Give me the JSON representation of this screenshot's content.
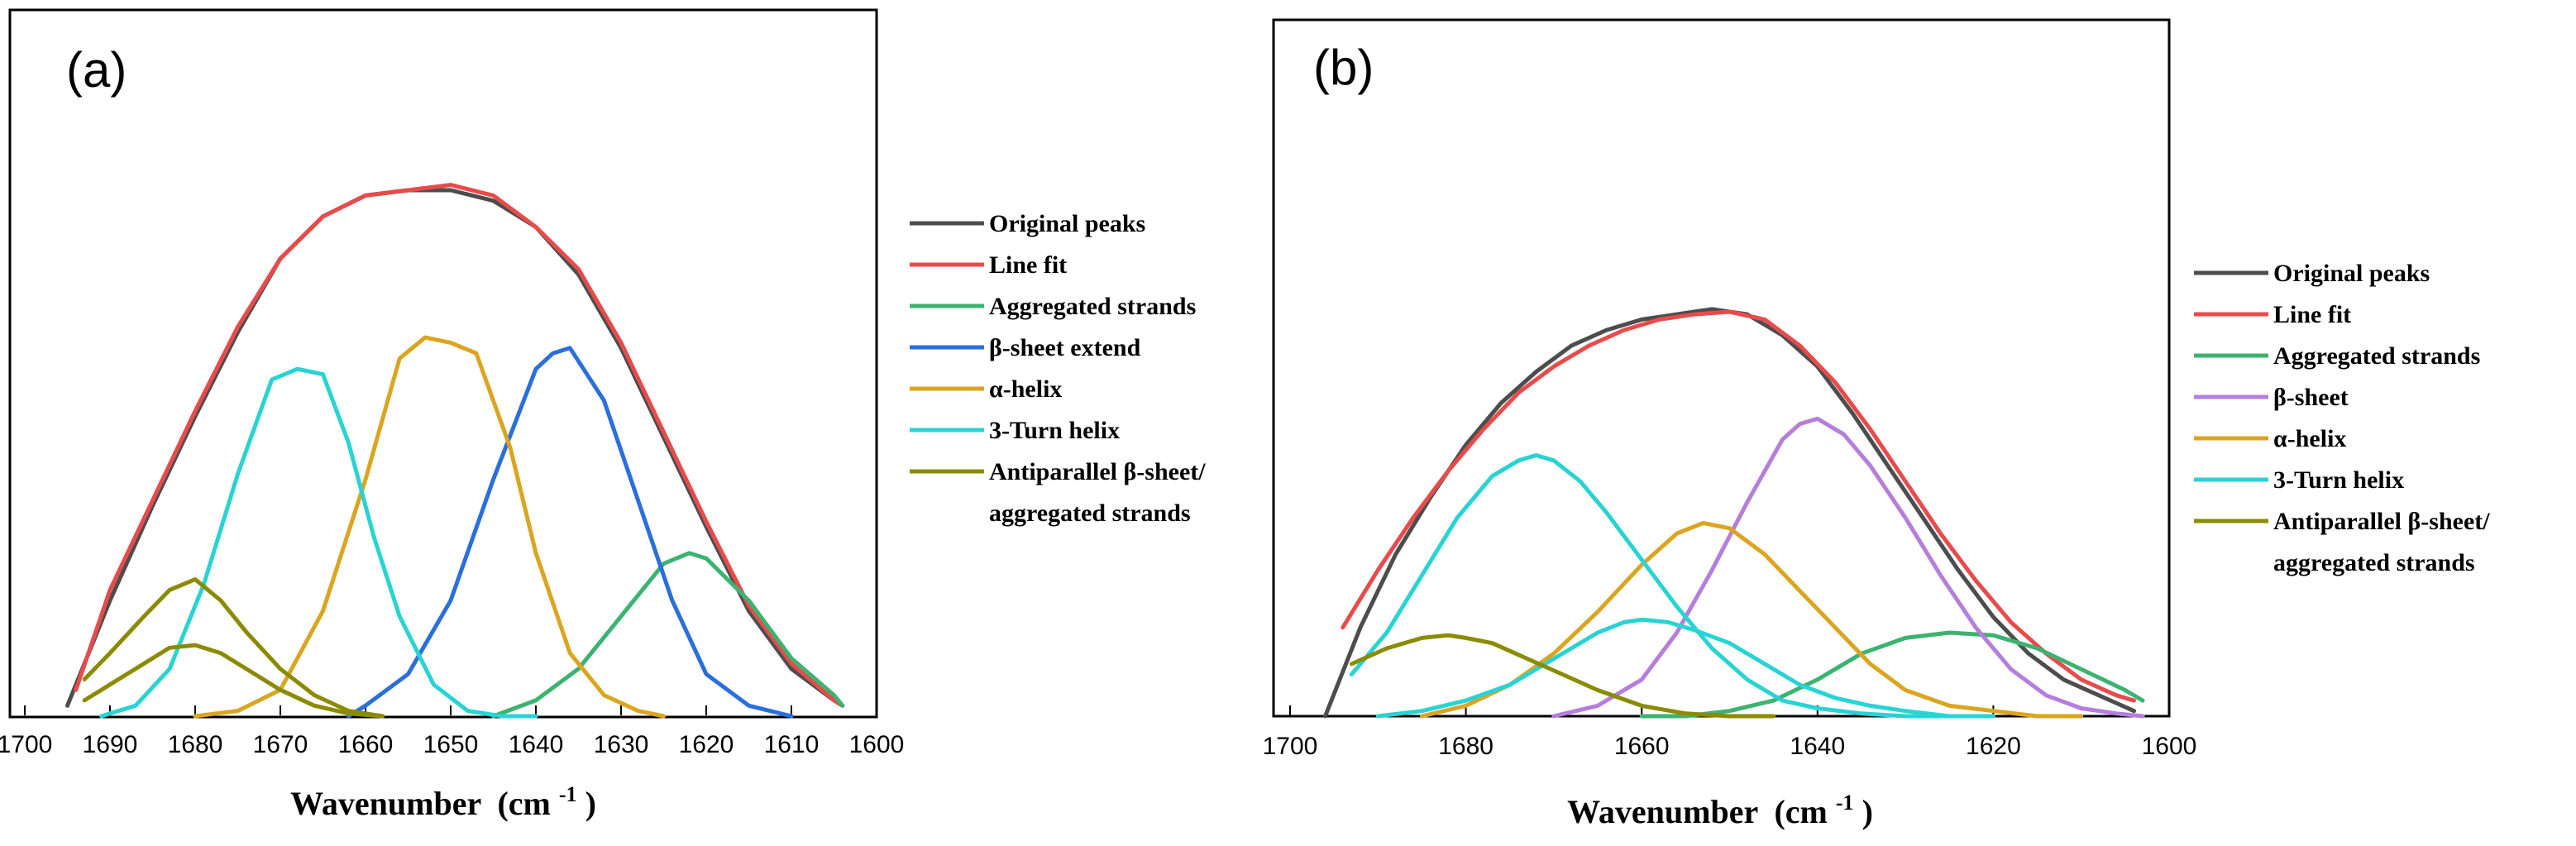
{
  "chart_data": [
    {
      "type": "line",
      "panel_label": "(a)",
      "xlabel": "Wavenumber",
      "xlabel_unit": "(cm",
      "xlabel_sup": "-1",
      "xlabel_close": ")",
      "ylabel": "",
      "xlim": [
        1700,
        1600
      ],
      "ylim": [
        0,
        1
      ],
      "x_ticks": [
        1700,
        1690,
        1680,
        1670,
        1660,
        1650,
        1640,
        1630,
        1620,
        1610,
        1600
      ],
      "legend": [
        "Original peaks",
        "Line fit",
        "Aggregated strands",
        "β-sheet extend",
        "α-helix",
        "3-Turn helix",
        "Antiparallel β-sheet/",
        "aggregated strands"
      ],
      "series": [
        {
          "name": "Original peaks",
          "color": "#4d4d4d",
          "x": [
            1695,
            1690,
            1685,
            1680,
            1675,
            1670,
            1665,
            1660,
            1655,
            1650,
            1645,
            1640,
            1635,
            1630,
            1625,
            1620,
            1615,
            1610,
            1605,
            1604
          ],
          "y": [
            0.02,
            0.22,
            0.4,
            0.57,
            0.73,
            0.87,
            0.95,
            0.99,
            1.0,
            1.0,
            0.98,
            0.93,
            0.84,
            0.7,
            0.53,
            0.36,
            0.2,
            0.09,
            0.03,
            0.02
          ]
        },
        {
          "name": "Line fit",
          "color": "#e84b4b",
          "x": [
            1694,
            1690,
            1685,
            1680,
            1675,
            1670,
            1665,
            1660,
            1655,
            1650,
            1645,
            1640,
            1635,
            1630,
            1625,
            1620,
            1615,
            1610,
            1605,
            1604
          ],
          "y": [
            0.05,
            0.24,
            0.41,
            0.58,
            0.74,
            0.87,
            0.95,
            0.99,
            1.0,
            1.01,
            0.99,
            0.93,
            0.85,
            0.71,
            0.54,
            0.37,
            0.21,
            0.1,
            0.03,
            0.02
          ]
        },
        {
          "name": "Aggregated strands",
          "color": "#3cb371",
          "x": [
            1645,
            1640,
            1635,
            1630,
            1625,
            1622,
            1620,
            1615,
            1610,
            1605,
            1604
          ],
          "y": [
            0.0,
            0.03,
            0.09,
            0.19,
            0.29,
            0.31,
            0.3,
            0.22,
            0.11,
            0.04,
            0.02
          ]
        },
        {
          "name": "β-sheet extend",
          "color": "#2a6fdb",
          "x": [
            1662,
            1660,
            1655,
            1650,
            1645,
            1640,
            1638,
            1636,
            1632,
            1628,
            1624,
            1620,
            1615,
            1610
          ],
          "y": [
            0.0,
            0.02,
            0.08,
            0.22,
            0.45,
            0.66,
            0.69,
            0.7,
            0.6,
            0.41,
            0.22,
            0.08,
            0.02,
            0.0
          ]
        },
        {
          "name": "α-helix",
          "color": "#daa520",
          "x": [
            1680,
            1675,
            1670,
            1665,
            1660,
            1656,
            1653,
            1650,
            1647,
            1643,
            1640,
            1636,
            1632,
            1628,
            1625
          ],
          "y": [
            0.0,
            0.01,
            0.05,
            0.2,
            0.45,
            0.68,
            0.72,
            0.71,
            0.69,
            0.51,
            0.31,
            0.12,
            0.04,
            0.01,
            0.0
          ]
        },
        {
          "name": "3-Turn helix",
          "color": "#2ad3d3",
          "x": [
            1691,
            1687,
            1683,
            1679,
            1675,
            1671,
            1668,
            1665,
            1662,
            1659,
            1656,
            1652,
            1648,
            1644,
            1640
          ],
          "y": [
            0.0,
            0.02,
            0.09,
            0.25,
            0.46,
            0.64,
            0.66,
            0.65,
            0.52,
            0.34,
            0.19,
            0.06,
            0.01,
            0.0,
            0.0
          ]
        },
        {
          "name": "Antiparallel β-sheet/aggregated strands",
          "color": "#8b8b00",
          "x": [
            1693,
            1690,
            1686,
            1683,
            1680,
            1677,
            1674,
            1670,
            1666,
            1662,
            1658
          ],
          "y": [
            0.07,
            0.12,
            0.19,
            0.24,
            0.26,
            0.22,
            0.16,
            0.09,
            0.04,
            0.01,
            0.0
          ]
        },
        {
          "name": "Antiparallel β-sheet/aggregated strands (2)",
          "color": "#8b8b00",
          "x": [
            1693,
            1690,
            1686,
            1683,
            1680,
            1677,
            1674,
            1670,
            1666,
            1662,
            1658
          ],
          "y": [
            0.03,
            0.06,
            0.1,
            0.13,
            0.135,
            0.12,
            0.09,
            0.05,
            0.02,
            0.005,
            0.0
          ]
        }
      ]
    },
    {
      "type": "line",
      "panel_label": "(b)",
      "xlabel": "Wavenumber",
      "xlabel_unit": "(cm",
      "xlabel_sup": "-1",
      "xlabel_close": ")",
      "ylabel": "",
      "xlim": [
        1700,
        1600
      ],
      "ylim": [
        0,
        1
      ],
      "x_ticks": [
        1700,
        1680,
        1660,
        1640,
        1620,
        1600
      ],
      "legend": [
        "Original peaks",
        "Line fit",
        "Aggregated strands",
        "β-sheet",
        "α-helix",
        "3-Turn helix",
        "Antiparallel β-sheet/",
        "aggregated strands"
      ],
      "series": [
        {
          "name": "Original peaks",
          "color": "#4d4d4d",
          "x": [
            1696,
            1692,
            1688,
            1684,
            1680,
            1676,
            1672,
            1668,
            1664,
            1660,
            1656,
            1652,
            1648,
            1644,
            1640,
            1636,
            1632,
            1628,
            1624,
            1620,
            1616,
            1612,
            1608,
            1604
          ],
          "y": [
            0.0,
            0.17,
            0.31,
            0.42,
            0.52,
            0.6,
            0.66,
            0.71,
            0.74,
            0.76,
            0.77,
            0.78,
            0.77,
            0.73,
            0.67,
            0.58,
            0.48,
            0.38,
            0.28,
            0.19,
            0.12,
            0.07,
            0.04,
            0.01
          ]
        },
        {
          "name": "Line fit",
          "color": "#e84b4b",
          "x": [
            1694,
            1690,
            1686,
            1682,
            1678,
            1674,
            1670,
            1666,
            1662,
            1658,
            1654,
            1650,
            1646,
            1642,
            1638,
            1634,
            1630,
            1626,
            1622,
            1618,
            1614,
            1610,
            1606,
            1604
          ],
          "y": [
            0.17,
            0.28,
            0.38,
            0.47,
            0.55,
            0.62,
            0.67,
            0.71,
            0.74,
            0.76,
            0.77,
            0.775,
            0.76,
            0.71,
            0.64,
            0.55,
            0.45,
            0.35,
            0.26,
            0.18,
            0.12,
            0.07,
            0.04,
            0.03
          ]
        },
        {
          "name": "Aggregated strands",
          "color": "#3cb371",
          "x": [
            1660,
            1655,
            1650,
            1645,
            1640,
            1635,
            1630,
            1625,
            1620,
            1615,
            1610,
            1605,
            1603
          ],
          "y": [
            0.0,
            0.0,
            0.01,
            0.03,
            0.07,
            0.12,
            0.15,
            0.16,
            0.155,
            0.13,
            0.09,
            0.05,
            0.03
          ]
        },
        {
          "name": "β-sheet",
          "color": "#b57edc",
          "x": [
            1670,
            1665,
            1660,
            1656,
            1652,
            1648,
            1644,
            1642,
            1640,
            1637,
            1634,
            1630,
            1626,
            1622,
            1618,
            1614,
            1610,
            1606,
            1603
          ],
          "y": [
            0.0,
            0.02,
            0.07,
            0.16,
            0.28,
            0.41,
            0.53,
            0.56,
            0.57,
            0.54,
            0.48,
            0.38,
            0.27,
            0.17,
            0.09,
            0.04,
            0.015,
            0.005,
            0.0
          ]
        },
        {
          "name": "α-helix",
          "color": "#daa520",
          "x": [
            1685,
            1680,
            1675,
            1670,
            1665,
            1660,
            1656,
            1653,
            1650,
            1646,
            1642,
            1638,
            1634,
            1630,
            1625,
            1620,
            1615,
            1610
          ],
          "y": [
            0.0,
            0.02,
            0.06,
            0.12,
            0.2,
            0.29,
            0.35,
            0.37,
            0.36,
            0.31,
            0.24,
            0.17,
            0.1,
            0.05,
            0.02,
            0.01,
            0.0,
            0.0
          ]
        },
        {
          "name": "3-Turn helix",
          "color": "#2ad3d3",
          "x": [
            1693,
            1689,
            1685,
            1681,
            1677,
            1674,
            1672,
            1670,
            1667,
            1664,
            1660,
            1656,
            1652,
            1648,
            1644,
            1640,
            1635,
            1630,
            1625
          ],
          "y": [
            0.08,
            0.16,
            0.27,
            0.38,
            0.46,
            0.49,
            0.5,
            0.49,
            0.45,
            0.39,
            0.3,
            0.21,
            0.13,
            0.07,
            0.03,
            0.015,
            0.005,
            0.0,
            0.0
          ]
        },
        {
          "name": "3-Turn helix (2)",
          "color": "#2ad3d3",
          "x": [
            1690,
            1685,
            1680,
            1675,
            1670,
            1665,
            1662,
            1660,
            1657,
            1654,
            1650,
            1646,
            1642,
            1638,
            1634,
            1630,
            1625,
            1620
          ],
          "y": [
            0.0,
            0.01,
            0.03,
            0.06,
            0.11,
            0.16,
            0.18,
            0.185,
            0.18,
            0.165,
            0.14,
            0.1,
            0.06,
            0.035,
            0.02,
            0.01,
            0.0,
            0.0
          ]
        },
        {
          "name": "Antiparallel β-sheet/aggregated strands",
          "color": "#8b8b00",
          "x": [
            1693,
            1689,
            1685,
            1682,
            1680,
            1677,
            1673,
            1669,
            1665,
            1660,
            1655,
            1650,
            1645
          ],
          "y": [
            0.1,
            0.13,
            0.15,
            0.155,
            0.15,
            0.14,
            0.11,
            0.08,
            0.05,
            0.02,
            0.005,
            0.0,
            0.0
          ]
        }
      ]
    }
  ]
}
